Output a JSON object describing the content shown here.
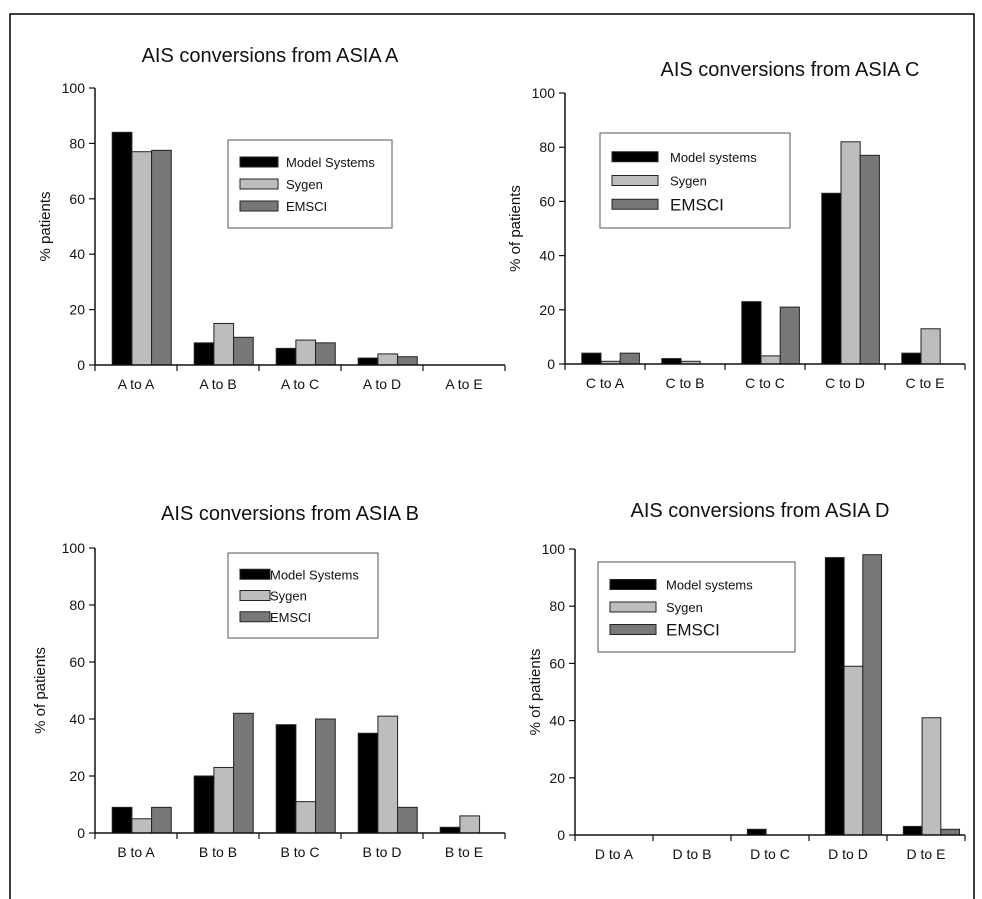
{
  "colors": {
    "series": [
      "#000000",
      "#bdbdbd",
      "#787878"
    ],
    "bar_outline": "#222222",
    "axis": "#111111",
    "legend_border": "#555555",
    "frame": "#000000"
  },
  "chart_data": [
    {
      "type": "bar",
      "title": "AIS conversions from ASIA A",
      "xlabel": "",
      "ylabel": "% patients",
      "ylim": [
        0,
        100
      ],
      "yticks": [
        0,
        20,
        40,
        60,
        80,
        100
      ],
      "grid": false,
      "legend_position": "top-right",
      "categories": [
        "A to A",
        "A to B",
        "A to C",
        "A to D",
        "A to E"
      ],
      "series": [
        {
          "name": "Model Systems",
          "values": [
            84,
            8,
            6,
            2.5,
            0
          ]
        },
        {
          "name": "Sygen",
          "values": [
            77,
            15,
            9,
            4,
            0
          ]
        },
        {
          "name": "EMSCI",
          "values": [
            77.5,
            10,
            8,
            3,
            0
          ]
        }
      ]
    },
    {
      "type": "bar",
      "title": "AIS conversions from ASIA C",
      "xlabel": "",
      "ylabel": "% of patients",
      "ylim": [
        0,
        100
      ],
      "yticks": [
        0,
        20,
        40,
        60,
        80,
        100
      ],
      "grid": false,
      "legend_position": "top-left",
      "categories": [
        "C to A",
        "C to B",
        "C to C",
        "C to D",
        "C to E"
      ],
      "series": [
        {
          "name": "Model systems",
          "values": [
            4,
            2,
            23,
            63,
            4
          ]
        },
        {
          "name": "Sygen",
          "values": [
            1,
            1,
            3,
            82,
            13
          ]
        },
        {
          "name": "EMSCI",
          "values": [
            4,
            0,
            21,
            77,
            0
          ]
        }
      ]
    },
    {
      "type": "bar",
      "title": "AIS conversions from ASIA B",
      "xlabel": "",
      "ylabel": "% of patients",
      "ylim": [
        0,
        100
      ],
      "yticks": [
        0,
        20,
        40,
        60,
        80,
        100
      ],
      "grid": false,
      "legend_position": "top-center",
      "categories": [
        "B to A",
        "B to B",
        "B to C",
        "B to D",
        "B to E"
      ],
      "series": [
        {
          "name": "Model Systems",
          "values": [
            9,
            20,
            38,
            35,
            2
          ]
        },
        {
          "name": "Sygen",
          "values": [
            5,
            23,
            11,
            41,
            6
          ]
        },
        {
          "name": "EMSCI",
          "values": [
            9,
            42,
            40,
            9,
            0
          ]
        }
      ]
    },
    {
      "type": "bar",
      "title": "AIS conversions from ASIA D",
      "xlabel": "",
      "ylabel": "% of patients",
      "ylim": [
        0,
        100
      ],
      "yticks": [
        0,
        20,
        40,
        60,
        80,
        100
      ],
      "grid": false,
      "legend_position": "top-left",
      "categories": [
        "D to A",
        "D to B",
        "D to C",
        "D to D",
        "D to E"
      ],
      "series": [
        {
          "name": "Model systems",
          "values": [
            0,
            0,
            2,
            97,
            3
          ]
        },
        {
          "name": "Sygen",
          "values": [
            0,
            0,
            0,
            59,
            41
          ]
        },
        {
          "name": "EMSCI",
          "values": [
            0,
            0,
            0,
            98,
            2
          ]
        }
      ]
    }
  ]
}
